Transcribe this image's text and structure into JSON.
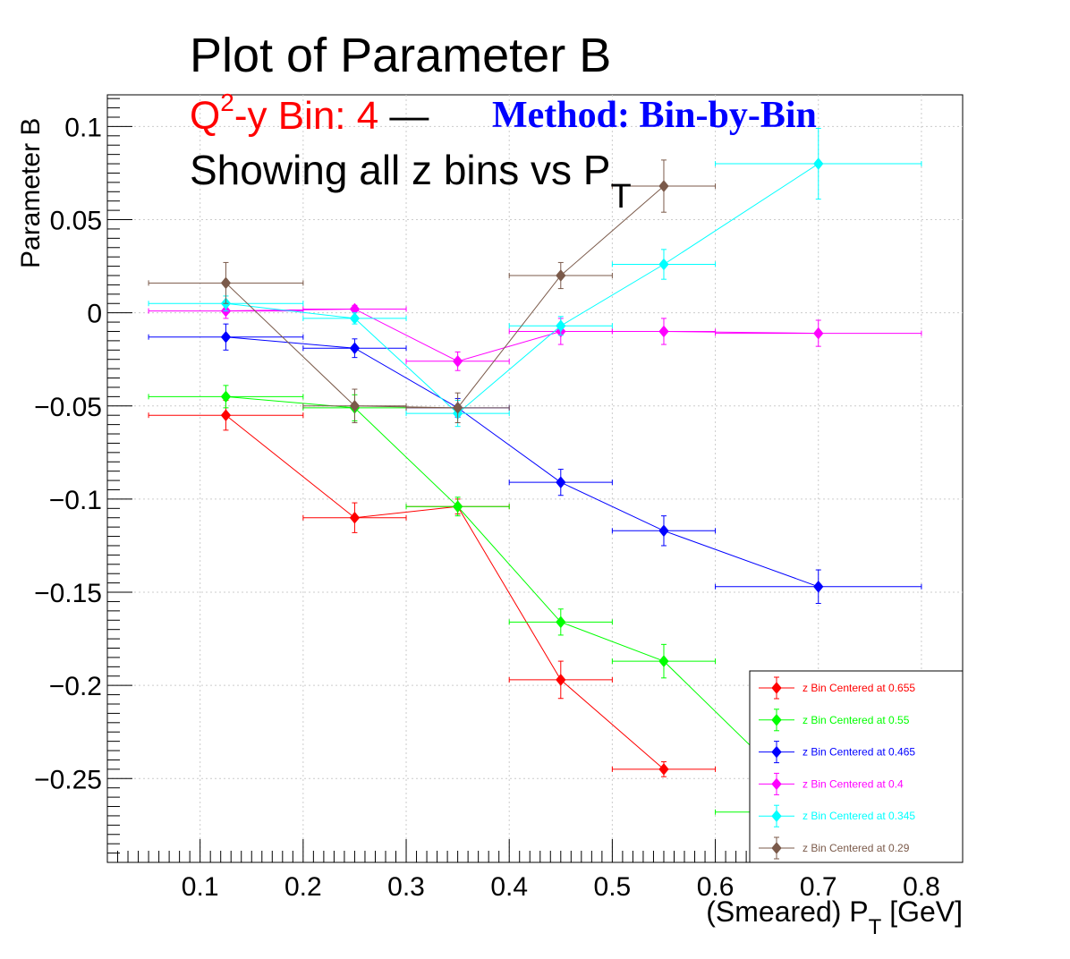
{
  "chart_data": {
    "type": "scatter",
    "title": "Plot of Parameter B",
    "subtitle": {
      "q2_part1": "Q",
      "q2_sup": "2",
      "q2_part2": "-y Bin: 4",
      "separator": " —",
      "method": "Method: Bin-by-Bin",
      "line3": "Showing all z bins vs P",
      "line3_sub": "T"
    },
    "xlabel": {
      "main": "(Smeared) P",
      "sub": "T",
      "unit": " [GeV]"
    },
    "ylabel": "Parameter B",
    "xlim": [
      0.01,
      0.84
    ],
    "ylim": [
      -0.295,
      0.117
    ],
    "xticks": [
      "0.1",
      "0.2",
      "0.3",
      "0.4",
      "0.5",
      "0.6",
      "0.7",
      "0.8"
    ],
    "xtick_values": [
      0.1,
      0.2,
      0.3,
      0.4,
      0.5,
      0.6,
      0.7,
      0.8
    ],
    "yticks": [
      "0.1",
      "0.05",
      "0",
      "−0.05",
      "−0.1",
      "−0.15",
      "−0.2",
      "−0.25"
    ],
    "ytick_values": [
      0.1,
      0.05,
      0,
      -0.05,
      -0.1,
      -0.15,
      -0.2,
      -0.25
    ],
    "grid": true,
    "legend_position": "bottom-right",
    "colors": {
      "title_q2": "#ff0000",
      "title_method": "#0000ff"
    },
    "series": [
      {
        "name": "z Bin Centered at 0.655",
        "color": "#ff0000",
        "x": [
          0.125,
          0.25,
          0.35,
          0.45,
          0.55
        ],
        "xlo": [
          0.05,
          0.2,
          0.3,
          0.4,
          0.5
        ],
        "xhi": [
          0.2,
          0.3,
          0.4,
          0.5,
          0.6
        ],
        "y": [
          -0.055,
          -0.11,
          -0.104,
          -0.197,
          -0.245
        ],
        "yerr": [
          0.008,
          0.008,
          0.004,
          0.01,
          0.004
        ]
      },
      {
        "name": "z Bin Centered at 0.55",
        "color": "#00ff00",
        "x": [
          0.125,
          0.25,
          0.35,
          0.45,
          0.55,
          0.7
        ],
        "xlo": [
          0.05,
          0.2,
          0.3,
          0.4,
          0.5,
          0.6
        ],
        "xhi": [
          0.2,
          0.3,
          0.4,
          0.5,
          0.6,
          0.8
        ],
        "y": [
          -0.045,
          -0.051,
          -0.104,
          -0.166,
          -0.187,
          -0.268
        ],
        "yerr": [
          0.006,
          0.007,
          0.005,
          0.007,
          0.009,
          0.01
        ]
      },
      {
        "name": "z Bin Centered at 0.465",
        "color": "#0000ff",
        "x": [
          0.125,
          0.25,
          0.35,
          0.45,
          0.55,
          0.7
        ],
        "xlo": [
          0.05,
          0.2,
          0.3,
          0.4,
          0.5,
          0.6
        ],
        "xhi": [
          0.2,
          0.3,
          0.4,
          0.5,
          0.6,
          0.8
        ],
        "y": [
          -0.013,
          -0.019,
          -0.051,
          -0.091,
          -0.117,
          -0.147
        ],
        "yerr": [
          0.007,
          0.005,
          0.005,
          0.007,
          0.008,
          0.009
        ]
      },
      {
        "name": "z Bin Centered at 0.4",
        "color": "#ff00ff",
        "x": [
          0.125,
          0.25,
          0.35,
          0.45,
          0.55,
          0.7
        ],
        "xlo": [
          0.05,
          0.2,
          0.3,
          0.4,
          0.5,
          0.6
        ],
        "xhi": [
          0.2,
          0.3,
          0.4,
          0.5,
          0.6,
          0.8
        ],
        "y": [
          0.001,
          0.002,
          -0.026,
          -0.01,
          -0.01,
          -0.011
        ],
        "yerr": [
          0.004,
          0.002,
          0.005,
          0.007,
          0.007,
          0.007
        ]
      },
      {
        "name": "z Bin Centered at 0.345",
        "color": "#00ffff",
        "x": [
          0.125,
          0.25,
          0.35,
          0.45,
          0.55,
          0.7
        ],
        "xlo": [
          0.05,
          0.2,
          0.3,
          0.4,
          0.5,
          0.6
        ],
        "xhi": [
          0.2,
          0.3,
          0.4,
          0.5,
          0.6,
          0.8
        ],
        "y": [
          0.005,
          -0.003,
          -0.054,
          -0.007,
          0.026,
          0.08
        ],
        "yerr": [
          0.004,
          0.003,
          0.007,
          0.005,
          0.008,
          0.019
        ]
      },
      {
        "name": "z Bin Centered at 0.29",
        "color": "#7b5a4a",
        "x": [
          0.125,
          0.25,
          0.35,
          0.45,
          0.55
        ],
        "xlo": [
          0.05,
          0.2,
          0.3,
          0.4,
          0.5
        ],
        "xhi": [
          0.2,
          0.3,
          0.4,
          0.5,
          0.6
        ],
        "y": [
          0.016,
          -0.05,
          -0.051,
          0.02,
          0.068
        ],
        "yerr": [
          0.011,
          0.009,
          0.008,
          0.007,
          0.014
        ]
      }
    ]
  }
}
